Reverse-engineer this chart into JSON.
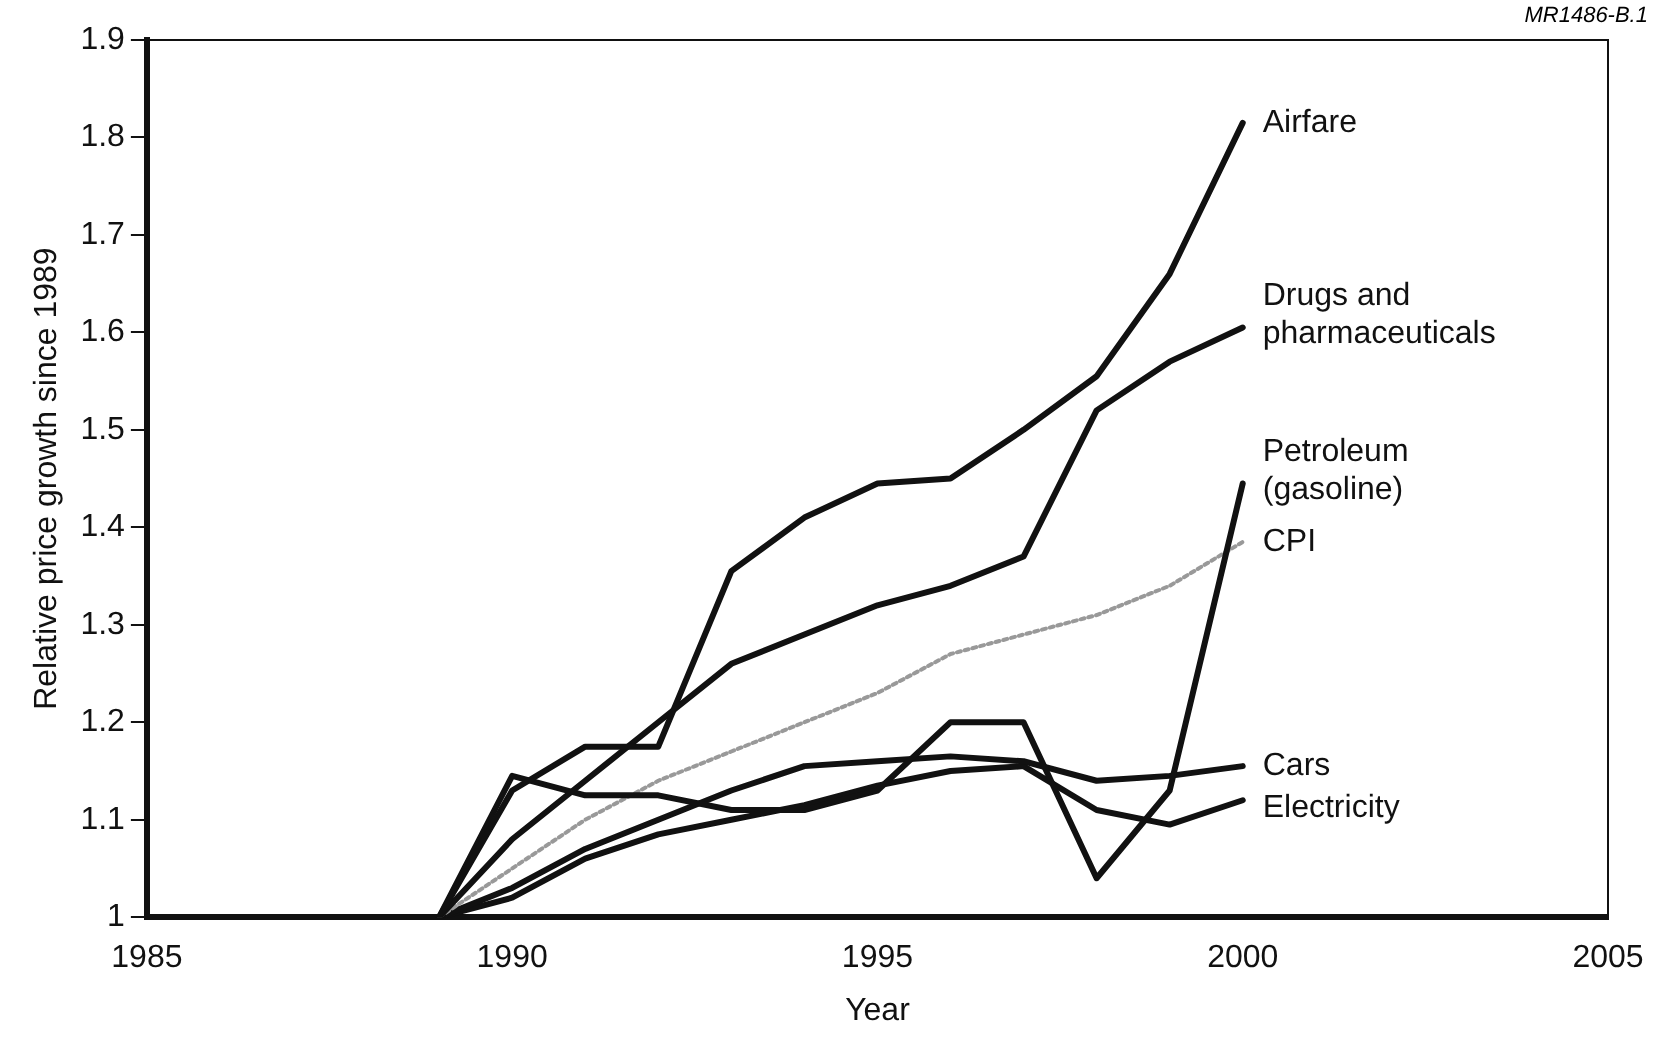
{
  "chart_data": {
    "type": "line",
    "xlabel": "Year",
    "ylabel": "Relative price growth since 1989",
    "annotations": [
      "MR1486-B.1"
    ],
    "x": [
      1989,
      1990,
      1991,
      1992,
      1993,
      1994,
      1995,
      1996,
      1997,
      1998,
      1999,
      2000
    ],
    "xlim": [
      1985,
      2005
    ],
    "xticks": [
      1985,
      1990,
      1995,
      2000,
      2005
    ],
    "ylim": [
      1,
      1.9
    ],
    "yticks": [
      1,
      1.1,
      1.2,
      1.3,
      1.4,
      1.5,
      1.6,
      1.7,
      1.8,
      1.9
    ],
    "grid": false,
    "legend": false,
    "marker": "none",
    "line_style": "solid",
    "series": [
      {
        "name": "Airfare",
        "color": "#111111",
        "values": [
          1,
          1.13,
          1.175,
          1.175,
          1.355,
          1.41,
          1.445,
          1.45,
          1.5,
          1.555,
          1.66,
          1.815
        ]
      },
      {
        "name": "Drugs and pharmaceuticals",
        "color": "#111111",
        "values": [
          1,
          1.08,
          1.14,
          1.2,
          1.26,
          1.29,
          1.32,
          1.34,
          1.37,
          1.52,
          1.57,
          1.605
        ]
      },
      {
        "name": "Petroleum (gasoline)",
        "color": "#111111",
        "values": [
          1,
          1.145,
          1.125,
          1.125,
          1.11,
          1.11,
          1.13,
          1.2,
          1.2,
          1.04,
          1.13,
          1.445
        ]
      },
      {
        "name": "CPI",
        "color": "#999999",
        "line_style": "dotted",
        "values": [
          1,
          1.05,
          1.1,
          1.14,
          1.17,
          1.2,
          1.23,
          1.27,
          1.29,
          1.31,
          1.34,
          1.385
        ]
      },
      {
        "name": "Cars",
        "color": "#111111",
        "values": [
          1,
          1.03,
          1.07,
          1.1,
          1.13,
          1.155,
          1.16,
          1.165,
          1.16,
          1.14,
          1.145,
          1.155
        ]
      },
      {
        "name": "Electricity",
        "color": "#111111",
        "values": [
          1,
          1.02,
          1.06,
          1.085,
          1.1,
          1.115,
          1.135,
          1.15,
          1.155,
          1.11,
          1.095,
          1.12
        ]
      }
    ]
  }
}
